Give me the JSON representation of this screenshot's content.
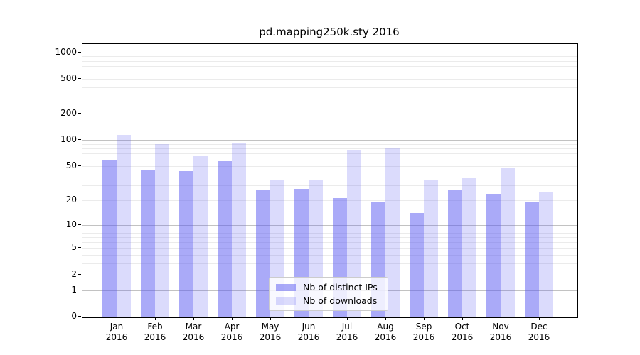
{
  "title": "pd.mapping250k.sty 2016",
  "chart_data": {
    "type": "bar",
    "title": "pd.mapping250k.sty 2016",
    "categories": [
      "Jan 2016",
      "Feb 2016",
      "Mar 2016",
      "Apr 2016",
      "May 2016",
      "Jun 2016",
      "Jul 2016",
      "Aug 2016",
      "Sep 2016",
      "Oct 2016",
      "Nov 2016",
      "Dec 2016"
    ],
    "x_tick_line1": [
      "Jan",
      "Feb",
      "Mar",
      "Apr",
      "May",
      "Jun",
      "Jul",
      "Aug",
      "Sep",
      "Oct",
      "Nov",
      "Dec"
    ],
    "x_tick_line2": [
      "2016",
      "2016",
      "2016",
      "2016",
      "2016",
      "2016",
      "2016",
      "2016",
      "2016",
      "2016",
      "2016",
      "2016"
    ],
    "series": [
      {
        "name": "Nb of distinct IPs",
        "values": [
          59,
          45,
          44,
          57,
          26,
          27,
          21,
          19,
          14,
          26,
          24,
          19
        ],
        "color": "rgba(85,85,241,0.5)",
        "color_hex_on_white": "#aaaaf8"
      },
      {
        "name": "Nb of downloads",
        "values": [
          114,
          90,
          65,
          91,
          35,
          35,
          77,
          80,
          35,
          37,
          47,
          25
        ],
        "color": "rgba(85,85,241,0.21)",
        "color_hex_on_white": "#dbdbf8"
      }
    ],
    "y_ticks": [
      0,
      1,
      2,
      5,
      10,
      20,
      50,
      100,
      200,
      500,
      1000
    ],
    "y_major_gridlines": [
      1,
      10,
      100,
      1000
    ],
    "y_scale": "log10(value+1)",
    "ylim": [
      0,
      1250
    ],
    "xlabel": "",
    "ylabel": "",
    "grid": "on",
    "legend_position": "lower center"
  },
  "legend": {
    "items": [
      {
        "label": "Nb of distinct IPs"
      },
      {
        "label": "Nb of downloads"
      }
    ]
  },
  "colors": {
    "bar_ips": "#aaaaf8",
    "bar_downloads": "#dbdbf8",
    "grid_major": "#c2c2c2",
    "grid_minor": "#ebebeb",
    "axis": "#000000",
    "legend_border": "#cccccc",
    "background": "#ffffff"
  }
}
